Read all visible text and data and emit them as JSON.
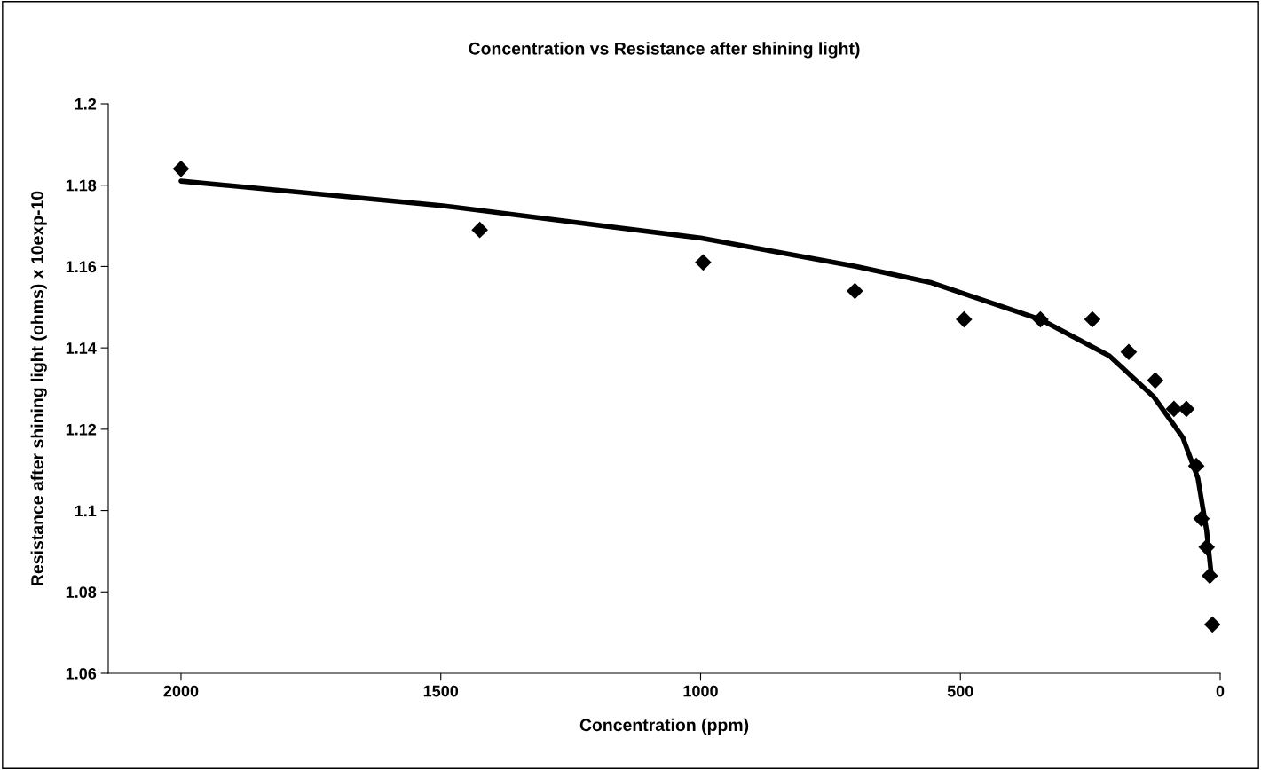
{
  "chart_data": {
    "type": "scatter",
    "title": "Concentration vs Resistance after shining light)",
    "xlabel": "Concentration (ppm)",
    "ylabel": "Resistance after shining light (ohms) x 10exp-10",
    "xlim": [
      2140,
      0
    ],
    "xticks": [
      2000,
      1500,
      1000,
      500,
      0
    ],
    "ylim": [
      1.06,
      1.2
    ],
    "yticks": [
      1.06,
      1.08,
      1.1,
      1.12,
      1.14,
      1.16,
      1.18,
      1.2
    ],
    "grid": false,
    "series": [
      {
        "marker": "diamond",
        "color": "#000000",
        "x": [
          2000,
          1425,
          995,
          703,
          493,
          346,
          246,
          176,
          125,
          89,
          65,
          46,
          36,
          26,
          20,
          15
        ],
        "values": [
          1.184,
          1.169,
          1.161,
          1.154,
          1.147,
          1.147,
          1.147,
          1.139,
          1.132,
          1.125,
          1.125,
          1.111,
          1.098,
          1.091,
          1.084,
          1.072
        ]
      },
      {
        "type": "line",
        "marker": "none",
        "color": "#000000",
        "x": [
          2000,
          1500,
          1000,
          700,
          555,
          346,
          213,
          128,
          72,
          43,
          26,
          17
        ],
        "values": [
          1.181,
          1.175,
          1.167,
          1.16,
          1.156,
          1.147,
          1.138,
          1.128,
          1.118,
          1.108,
          1.095,
          1.084
        ]
      }
    ]
  }
}
